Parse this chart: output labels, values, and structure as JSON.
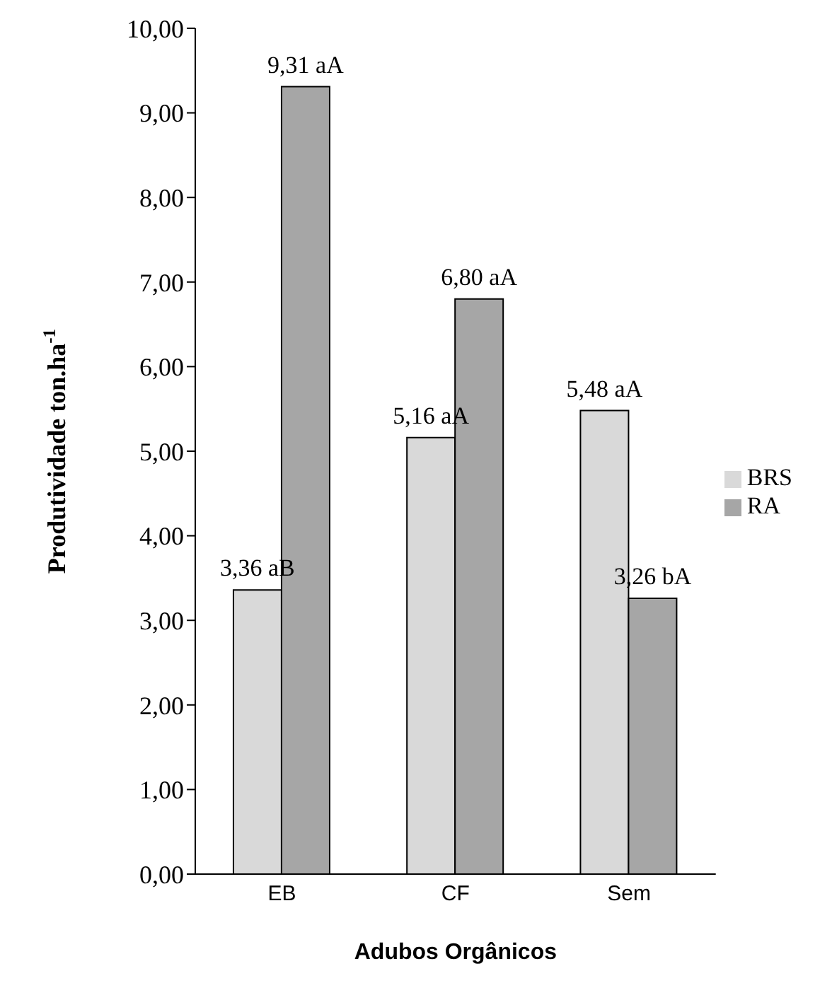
{
  "chart_data": {
    "type": "bar",
    "xlabel": "Adubos Orgânicos",
    "ylabel": "Produtividade ton.ha$^{-1}$",
    "categories": [
      "EB",
      "CF",
      "Sem"
    ],
    "series": [
      {
        "name": "BRS",
        "color": "#d9d9d9",
        "values": [
          3.36,
          5.16,
          5.48
        ],
        "value_labels": [
          "3,36 aB",
          "5,16 aA",
          "5,48 aA"
        ]
      },
      {
        "name": "RA",
        "color": "#a6a6a6",
        "values": [
          9.31,
          6.8,
          3.26
        ],
        "value_labels": [
          "9,31 aA",
          "6,80 aA",
          "3,26 bA"
        ]
      }
    ],
    "ylim": [
      0,
      10
    ],
    "yticks": [
      {
        "value": 0,
        "label": "0,00"
      },
      {
        "value": 1,
        "label": "1,00"
      },
      {
        "value": 2,
        "label": "2,00"
      },
      {
        "value": 3,
        "label": "3,00"
      },
      {
        "value": 4,
        "label": "4,00"
      },
      {
        "value": 5,
        "label": "5,00"
      },
      {
        "value": 6,
        "label": "6,00"
      },
      {
        "value": 7,
        "label": "7,00"
      },
      {
        "value": 8,
        "label": "8,00"
      },
      {
        "value": 9,
        "label": "9,00"
      },
      {
        "value": 10,
        "label": "10,00"
      }
    ],
    "grid": false,
    "legend": "right"
  }
}
